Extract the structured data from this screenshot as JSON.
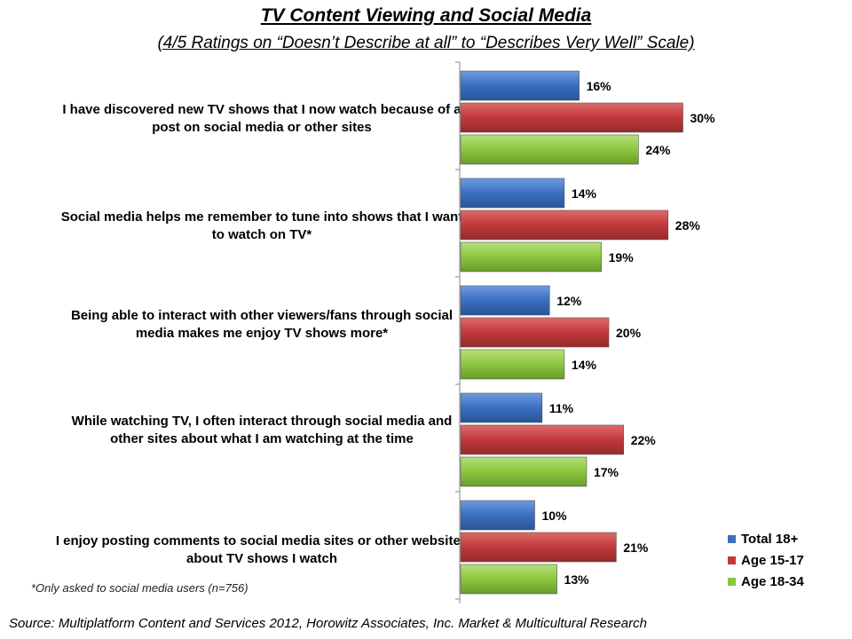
{
  "chart_data": {
    "type": "bar",
    "orientation": "horizontal",
    "title": "TV Content Viewing and Social Media",
    "subtitle": "(4/5 Ratings on “Doesn’t Describe at all” to “Describes Very Well” Scale)",
    "categories": [
      "I have discovered new TV shows that I now watch because of a post on social media or other sites",
      "Social media helps me remember to tune into shows that I want to watch on TV*",
      "Being able to interact with other viewers/fans through social media makes me enjoy TV shows more*",
      "While watching TV, I often interact through social media and other sites about what I am watching at the time",
      "I enjoy posting comments to social media sites or other websites about TV shows I watch"
    ],
    "series": [
      {
        "name": "Total 18+",
        "color": "#3a6fbf",
        "values": [
          16,
          14,
          12,
          11,
          10
        ],
        "labels": [
          "16%",
          "14%",
          "12%",
          "11%",
          "10%"
        ]
      },
      {
        "name": "Age 15-17",
        "color": "#c0393b",
        "values": [
          30,
          28,
          20,
          22,
          21
        ],
        "labels": [
          "30%",
          "28%",
          "20%",
          "22%",
          "21%"
        ]
      },
      {
        "name": "Age 18-34",
        "color": "#8cc63f",
        "values": [
          24,
          19,
          14,
          17,
          13
        ],
        "labels": [
          "24%",
          "19%",
          "14%",
          "17%",
          "13%"
        ]
      }
    ],
    "xlim": [
      0,
      40
    ],
    "legend": "bottom-right",
    "grid": false
  },
  "footnote": "*Only asked to social media users (n=756)",
  "source": "Source: Multiplatform Content and Services 2012, Horowitz Associates, Inc. Market & Multicultural Research"
}
